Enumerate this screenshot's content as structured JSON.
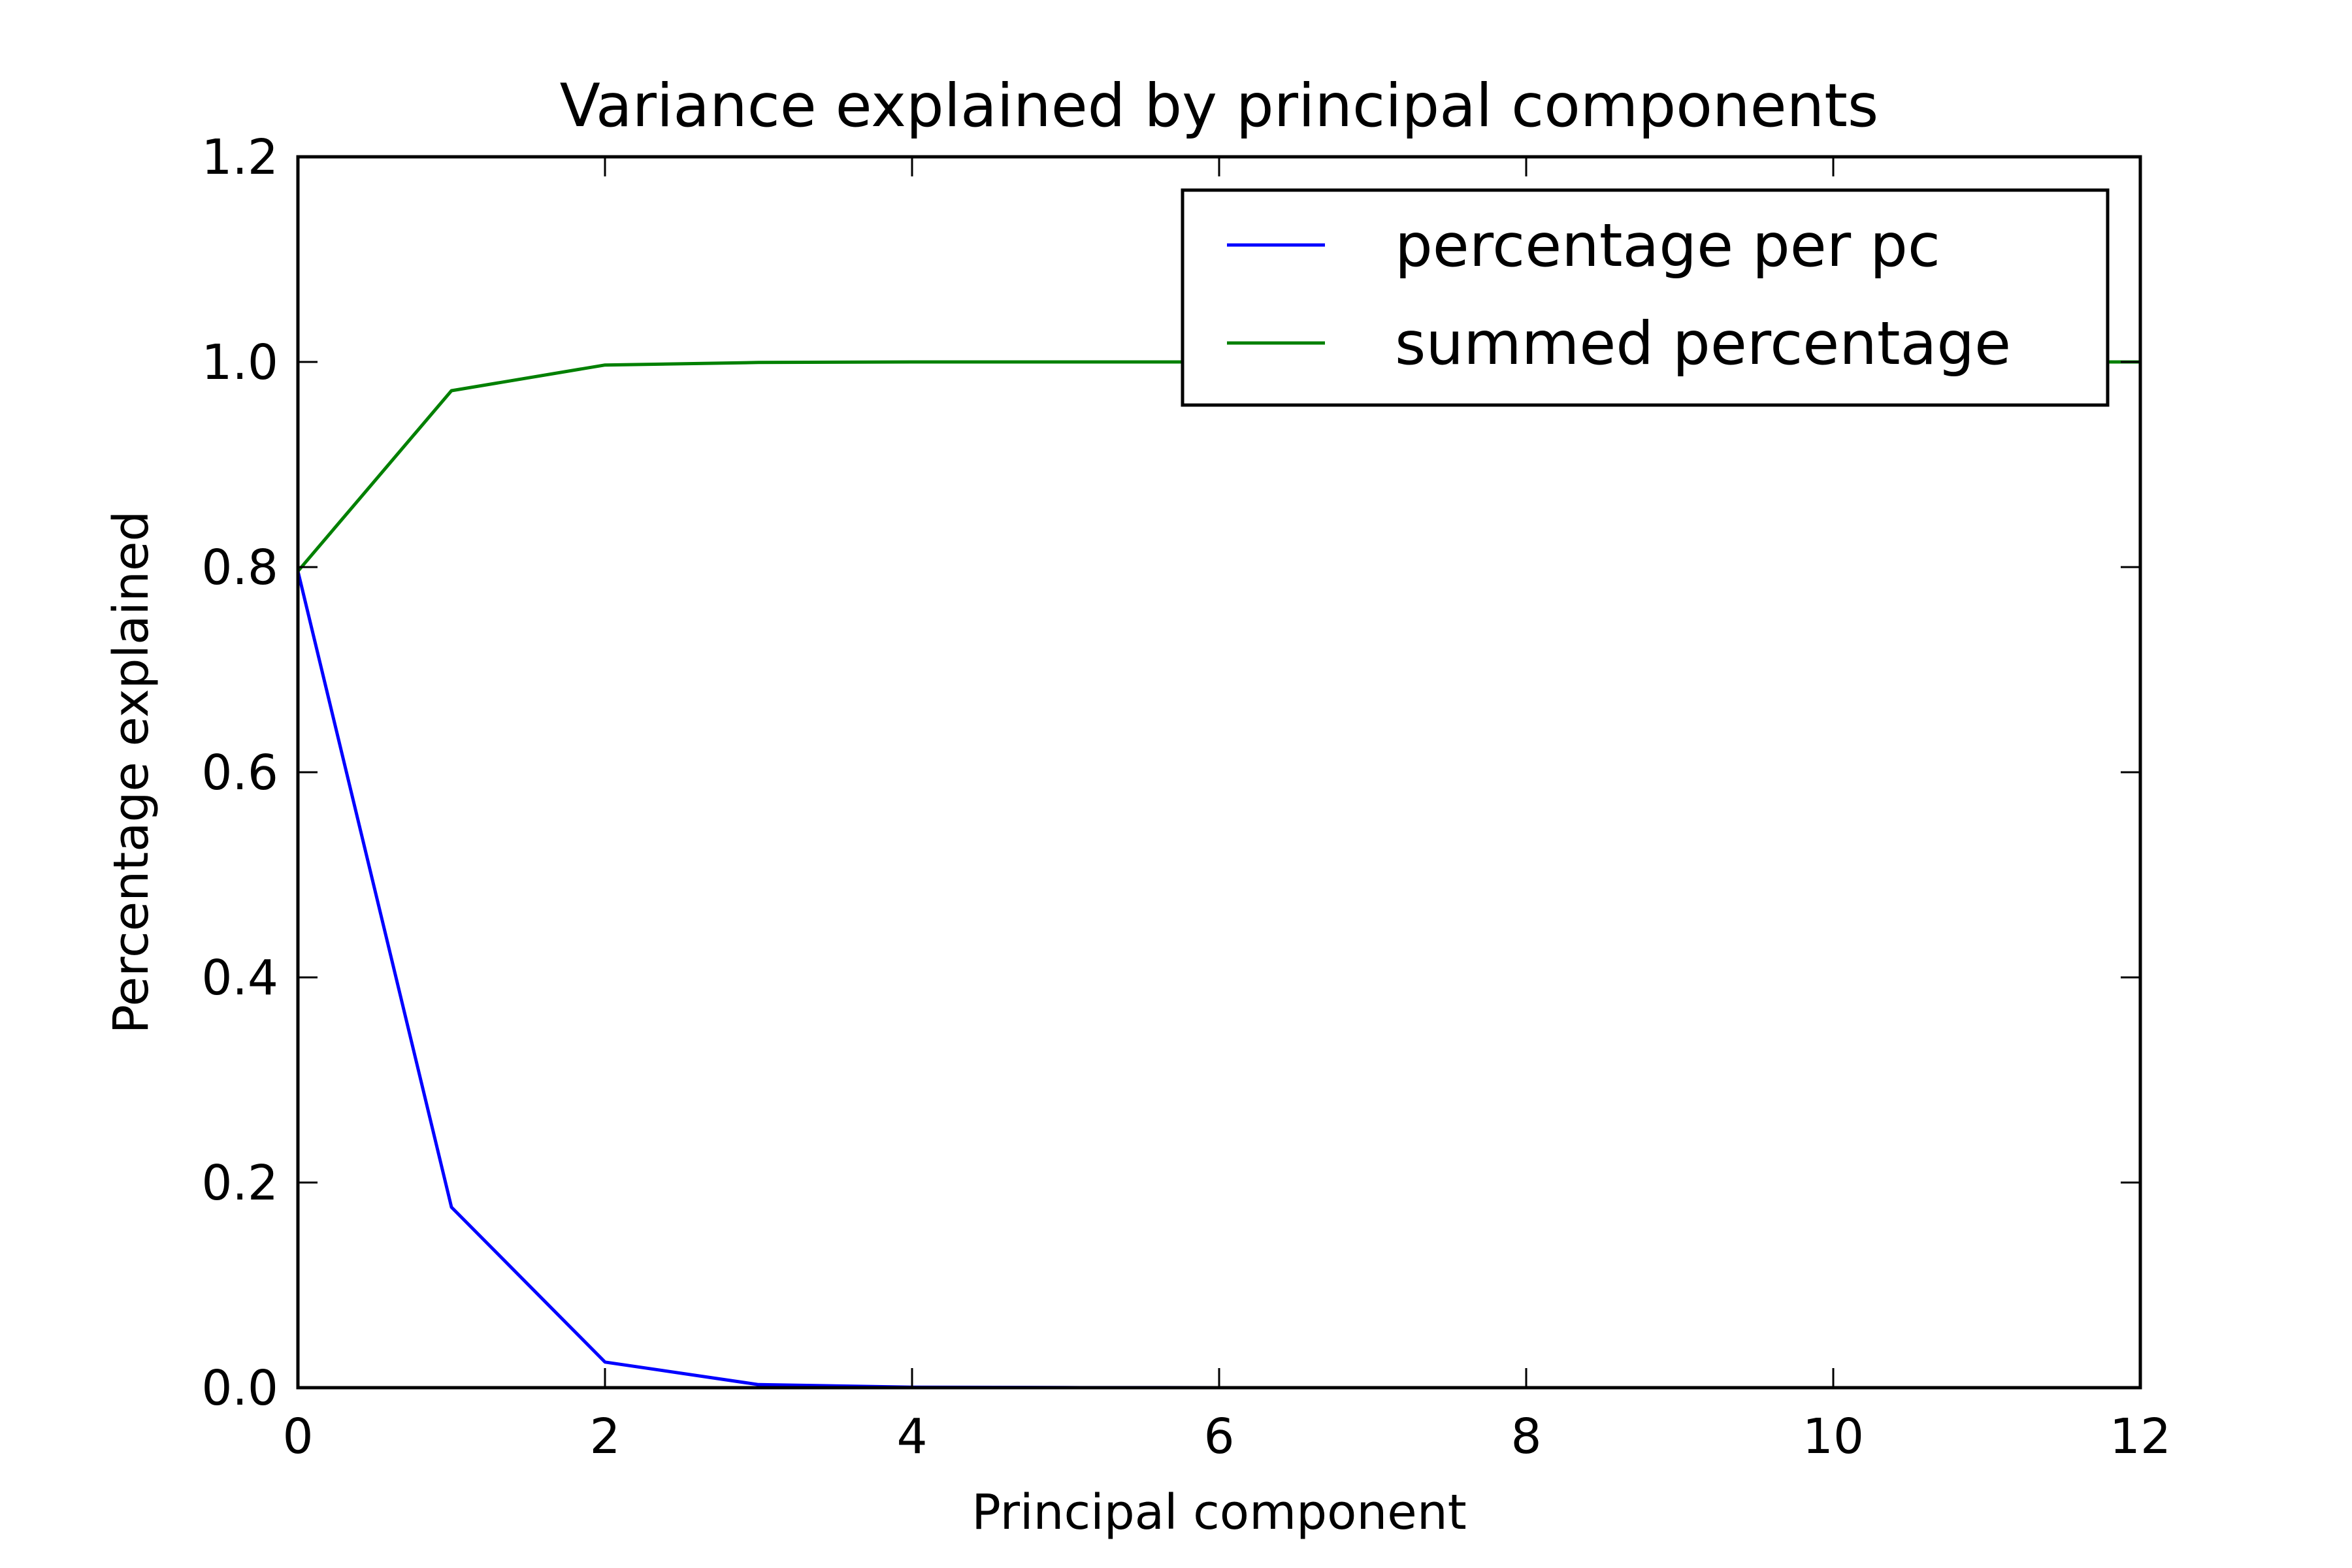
{
  "chart_data": {
    "type": "line",
    "title": "Variance explained by principal components",
    "xlabel": "Principal component",
    "ylabel": "Percentage explained",
    "xlim": [
      0,
      12
    ],
    "ylim": [
      0.0,
      1.2
    ],
    "xticks": [
      "0",
      "2",
      "4",
      "6",
      "8",
      "10",
      "12"
    ],
    "yticks": [
      "0.0",
      "0.2",
      "0.4",
      "0.6",
      "0.8",
      "1.0",
      "1.2"
    ],
    "grid": false,
    "legend_position": "top-right",
    "x": [
      0,
      1,
      2,
      3,
      4,
      5,
      6,
      7,
      8,
      9,
      10,
      11,
      12
    ],
    "series": [
      {
        "name": "percentage per pc",
        "color": "#0000ff",
        "values": [
          0.796,
          0.176,
          0.025,
          0.003,
          0.0005,
          0.0001,
          0.0,
          0.0,
          0.0,
          0.0,
          0.0,
          0.0,
          0.0
        ]
      },
      {
        "name": "summed percentage",
        "color": "#008000",
        "values": [
          0.796,
          0.972,
          0.997,
          0.9995,
          1.0,
          1.0,
          1.0,
          1.0,
          1.0,
          1.0,
          1.0,
          1.0,
          1.0
        ]
      }
    ]
  }
}
